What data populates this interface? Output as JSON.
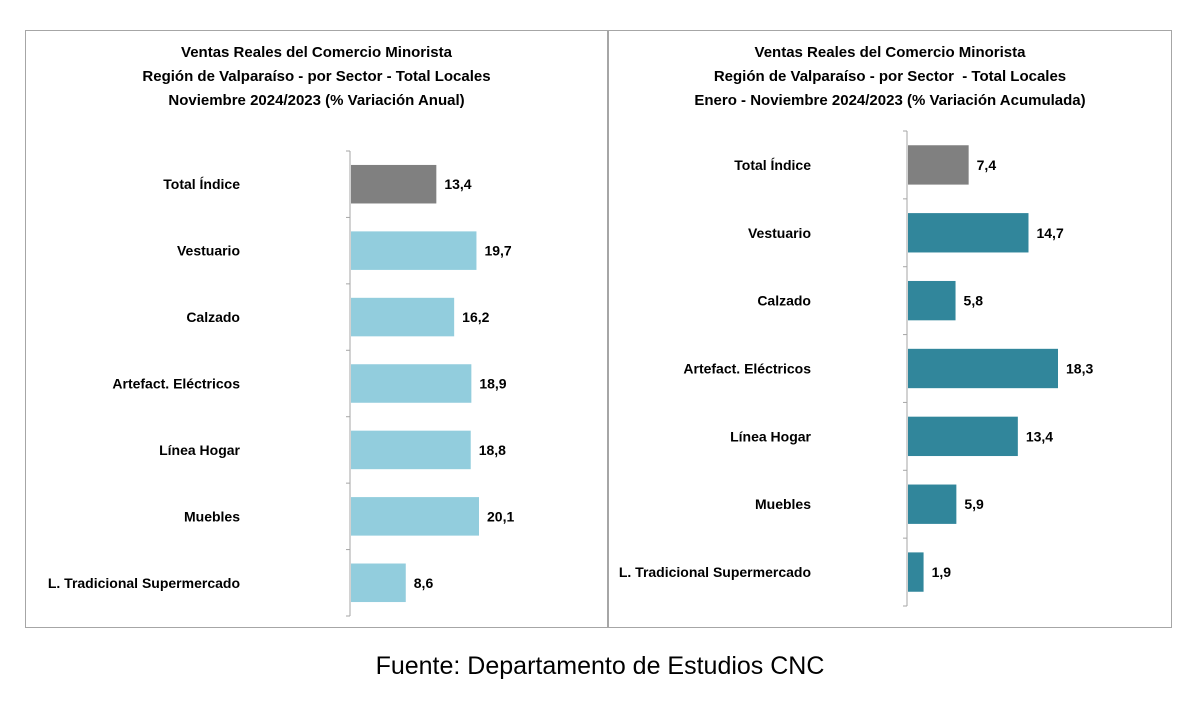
{
  "source_note": "Fuente: Departamento de Estudios CNC",
  "chart_data": [
    {
      "type": "bar",
      "orientation": "horizontal",
      "title": [
        "Ventas Reales del Comercio Minorista",
        "Región de Valparaíso - por Sector - Total Locales",
        "Noviembre 2024/2023 (% Variación Anual)"
      ],
      "categories": [
        "Total Índice",
        "Vestuario",
        "Calzado",
        "Artefact. Eléctricos",
        "Línea Hogar",
        "Muebles",
        "L. Tradicional Supermercado"
      ],
      "values": [
        13.4,
        19.7,
        16.2,
        18.9,
        18.8,
        20.1,
        8.6
      ],
      "value_labels": [
        "13,4",
        "19,7",
        "16,2",
        "18,9",
        "18,8",
        "20,1",
        "8,6"
      ],
      "colors": [
        "#808080",
        "#92cddd",
        "#92cddd",
        "#92cddd",
        "#92cddd",
        "#92cddd",
        "#92cddd"
      ],
      "xlabel": "",
      "ylabel": "",
      "xlim": [
        0,
        20.1
      ],
      "grid": false,
      "legend": "none"
    },
    {
      "type": "bar",
      "orientation": "horizontal",
      "title": [
        "Ventas Reales del Comercio Minorista",
        "Región de Valparaíso - por Sector  - Total Locales",
        "Enero - Noviembre 2024/2023 (% Variación Acumulada)"
      ],
      "categories": [
        "Total Índice",
        "Vestuario",
        "Calzado",
        "Artefact. Eléctricos",
        "Línea Hogar",
        "Muebles",
        "L. Tradicional Supermercado"
      ],
      "values": [
        7.4,
        14.7,
        5.8,
        18.3,
        13.4,
        5.9,
        1.9
      ],
      "value_labels": [
        "7,4",
        "14,7",
        "5,8",
        "18,3",
        "13,4",
        "5,9",
        "1,9"
      ],
      "colors": [
        "#808080",
        "#31869b",
        "#31869b",
        "#31869b",
        "#31869b",
        "#31869b",
        "#31869b"
      ],
      "xlabel": "",
      "ylabel": "",
      "xlim": [
        0,
        18.3
      ],
      "grid": false,
      "legend": "none"
    }
  ]
}
